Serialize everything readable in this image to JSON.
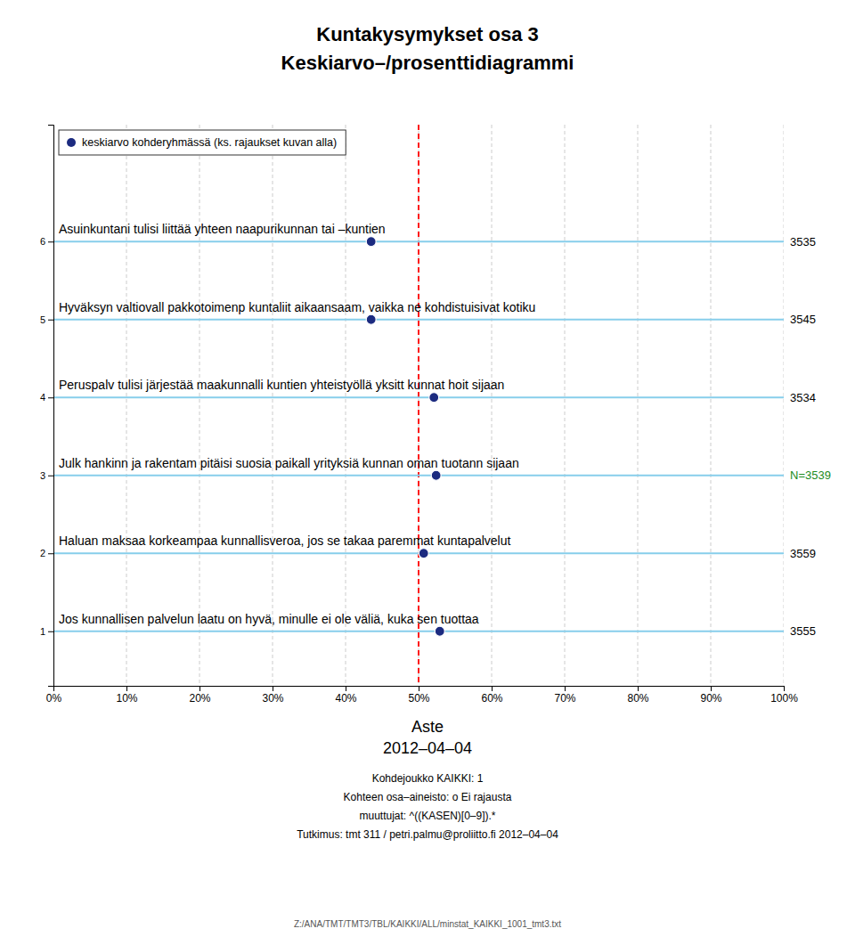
{
  "chart_data": {
    "type": "scatter",
    "title": "Kuntakysymykset osa 3",
    "subtitle": "Keskiarvo–/prosenttidiagrammi",
    "xlabel": "Aste",
    "xlabel_sub": "2012–04–04",
    "footer": [
      "Kohdejoukko KAIKKI: 1",
      "Kohteen osa–aineisto: o Ei rajausta",
      "muuttujat: ^((KASEN)[0–9]).*",
      "Tutkimus: tmt 311 / petri.palmu@proliitto.fi 2012–04–04"
    ],
    "source": "Z:/ANA/TMT/TMT3/TBL/KAIKKI/ALL/minstat_KAIKKI_1001_tmt3.txt",
    "series": [
      {
        "name": "keskiarvo kohderyhmässä (ks. rajaukset kuvan alla)",
        "color": "#1C2B80",
        "x": [
          0.435,
          0.435,
          0.521,
          0.524,
          0.507,
          0.529
        ],
        "values": [
          6,
          5,
          4,
          3,
          2,
          1
        ]
      }
    ],
    "row_labels": [
      "Asuinkuntani tulisi liittää yhteen naapurikunnan tai –kuntien",
      "Hyväksyn valtiovall pakkotoimenp kuntaliit aikaansaam, vaikka ne kohdistuisivat kotiku",
      "Peruspalv tulisi järjestää maakunnalli kuntien yhteistyöllä yksitt kunnat hoit sijaan",
      "Julk hankinn ja rakentam pitäisi suosia paikall yrityksiä kunnan oman tuotann sijaan",
      "Haluan maksaa korkeampaa kunnallisveroa, jos se takaa paremmat kuntapalvelut",
      "Jos kunnallisen palvelun laatu on hyvä, minulle ei ole väliä, kuka sen tuottaa"
    ],
    "n_labels": [
      "3535",
      "3545",
      "3534",
      "N=3539",
      "3559",
      "3555"
    ],
    "n_colors": [
      "#000000",
      "#000000",
      "#000000",
      "#228B22",
      "#000000",
      "#000000"
    ],
    "row_line_color": "#87CEEB",
    "reference_x": 0.5,
    "reference_color": "red",
    "xlim": [
      0.0,
      1.0
    ],
    "ylim": [
      0.3,
      7.5
    ],
    "xticks": [
      {
        "value": 0.0,
        "label": "0%"
      },
      {
        "value": 0.1,
        "label": "10%"
      },
      {
        "value": 0.2,
        "label": "20%"
      },
      {
        "value": 0.3,
        "label": "30%"
      },
      {
        "value": 0.4,
        "label": "40%"
      },
      {
        "value": 0.5,
        "label": "50%"
      },
      {
        "value": 0.6,
        "label": "60%"
      },
      {
        "value": 0.7,
        "label": "70%"
      },
      {
        "value": 0.8,
        "label": "80%"
      },
      {
        "value": 0.9,
        "label": "90%"
      },
      {
        "value": 1.0,
        "label": "100%"
      }
    ],
    "yticks": [
      1,
      2,
      3,
      4,
      5,
      6
    ],
    "grid": true,
    "legend": "upper left"
  }
}
